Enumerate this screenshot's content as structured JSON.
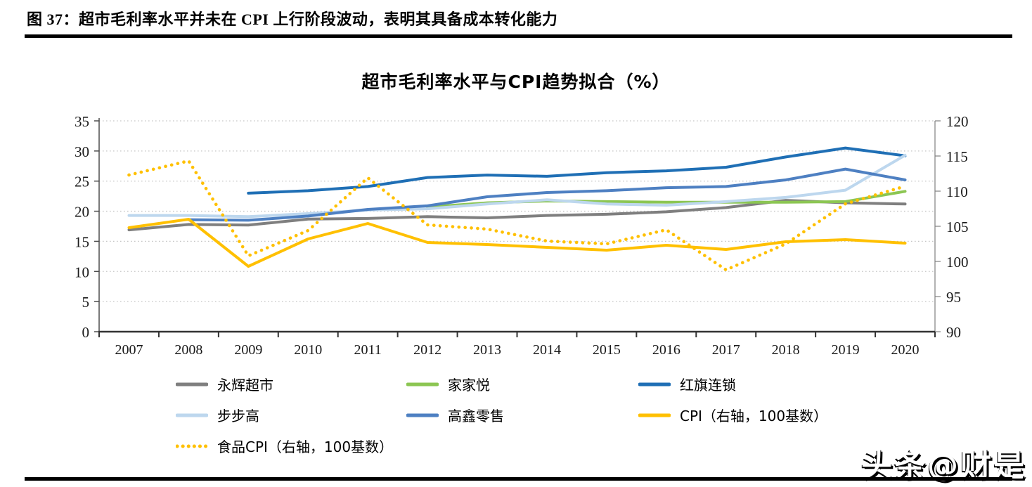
{
  "header": {
    "title": "图 37：超市毛利率水平并未在 CPI 上行阶段波动，表明其具备成本转化能力"
  },
  "watermark": {
    "text": "头条@财是"
  },
  "chart_data": {
    "type": "line",
    "title": "超市毛利率水平与CPI趋势拟合（%）",
    "categories": [
      "2007",
      "2008",
      "2009",
      "2010",
      "2011",
      "2012",
      "2013",
      "2014",
      "2015",
      "2016",
      "2017",
      "2018",
      "2019",
      "2020"
    ],
    "left_axis": {
      "min": 0,
      "max": 35,
      "step": 5
    },
    "right_axis": {
      "min": 90,
      "max": 120,
      "step": 5
    },
    "grid": "dotted-horizontal",
    "legend_position": "bottom",
    "series": [
      {
        "key": "yonghui",
        "name": "永辉超市",
        "axis": "left",
        "color": "#7F7F7F",
        "style": "solid",
        "values": [
          16.9,
          17.8,
          17.7,
          18.7,
          18.8,
          19.1,
          18.9,
          19.3,
          19.5,
          19.9,
          20.6,
          21.8,
          21.4,
          21.2
        ]
      },
      {
        "key": "jiajiayue",
        "name": "家家悦",
        "axis": "left",
        "color": "#8CC653",
        "style": "solid",
        "values": [
          null,
          null,
          null,
          null,
          null,
          20.7,
          21.4,
          21.7,
          21.6,
          21.5,
          21.5,
          21.5,
          21.6,
          23.3
        ]
      },
      {
        "key": "hongqi",
        "name": "红旗连锁",
        "axis": "left",
        "color": "#1F6FB5",
        "style": "solid",
        "values": [
          null,
          null,
          23.0,
          23.4,
          24.1,
          25.6,
          26.0,
          25.8,
          26.4,
          26.7,
          27.3,
          29.0,
          30.5,
          29.2
        ]
      },
      {
        "key": "bubugao",
        "name": "步步高",
        "axis": "left",
        "color": "#BDD7EE",
        "style": "solid",
        "values": [
          19.3,
          19.3,
          19.1,
          19.6,
          20.2,
          20.4,
          21.2,
          21.9,
          21.2,
          21.0,
          21.6,
          22.3,
          23.5,
          29.3
        ]
      },
      {
        "key": "gaoxin",
        "name": "高鑫零售",
        "axis": "left",
        "color": "#4E80C2",
        "style": "solid",
        "values": [
          null,
          18.6,
          18.5,
          19.2,
          20.3,
          20.9,
          22.4,
          23.1,
          23.4,
          23.9,
          24.1,
          25.2,
          27.0,
          25.2
        ]
      },
      {
        "key": "cpi",
        "name": "CPI（右轴，100基数）",
        "axis": "right",
        "color": "#FFC000",
        "style": "solid",
        "values": [
          104.8,
          106.0,
          99.3,
          103.2,
          105.4,
          102.7,
          102.4,
          102.0,
          101.6,
          102.3,
          101.7,
          102.8,
          103.1,
          102.6
        ]
      },
      {
        "key": "food-cpi",
        "name": "食品CPI（右轴，100基数）",
        "axis": "right",
        "color": "#FFC000",
        "style": "dotted",
        "values": [
          112.3,
          114.3,
          100.8,
          104.4,
          111.9,
          105.2,
          104.6,
          102.9,
          102.5,
          104.5,
          98.8,
          102.5,
          108.2,
          110.7
        ]
      }
    ],
    "legend_rows": [
      [
        0,
        1,
        2
      ],
      [
        3,
        4,
        5
      ],
      [
        6
      ]
    ]
  }
}
